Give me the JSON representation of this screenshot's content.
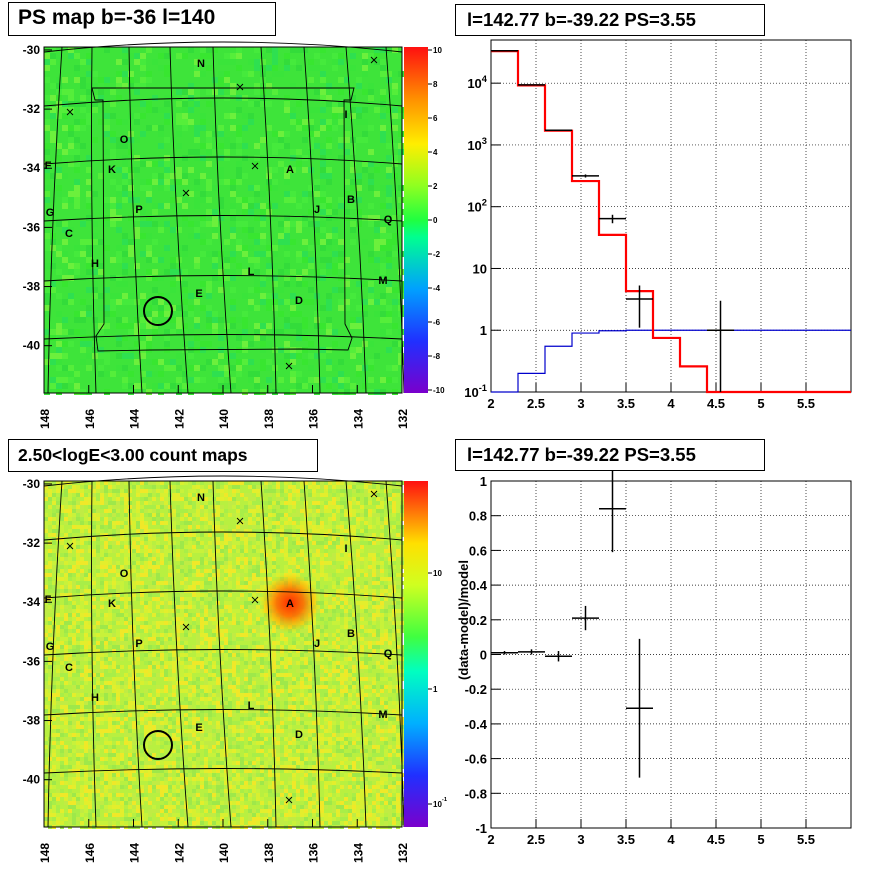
{
  "panels": {
    "map_top_title": "PS map b=-36 l=140",
    "spec_top_title": "l=142.77 b=-39.22 PS=3.55",
    "map_bottom_title": "2.50<logE<3.00 count maps",
    "spec_bottom_title": "l=142.77 b=-39.22 PS=3.55"
  },
  "source_labels": [
    "N",
    "I",
    "O",
    "K",
    "F",
    "A",
    "B",
    "J",
    "Q",
    "G",
    "C",
    "P",
    "H",
    "L",
    "M",
    "E",
    "D"
  ],
  "colors": {
    "data": "#000000",
    "model": "#ff0000",
    "background_model": "#0000cc"
  },
  "chart_data": [
    {
      "type": "heatmap",
      "title": "PS map b=-36 l=140",
      "x_ticks": [
        "148",
        "146",
        "144",
        "142",
        "140",
        "138",
        "136",
        "134",
        "132"
      ],
      "y_ticks": [
        "-30",
        "-32",
        "-34",
        "-36",
        "-38",
        "-40"
      ],
      "xlim": [
        148,
        132
      ],
      "ylim": [
        -41.6,
        -29.9
      ],
      "colorbar_ticks": [
        "10",
        "8",
        "6",
        "4",
        "2",
        "0",
        "-2",
        "-4",
        "-6",
        "-8",
        "-10"
      ],
      "colorbar_range": [
        -10,
        10
      ],
      "marked_position": {
        "l": 142.77,
        "b": -39.22
      }
    },
    {
      "type": "line",
      "title": "l=142.77 b=-39.22 PS=3.55",
      "xlabel": "",
      "ylabel": "",
      "xlim": [
        2,
        6
      ],
      "ylim": [
        0.1,
        50000
      ],
      "yscale": "log",
      "x_ticks": [
        "2",
        "2.5",
        "3",
        "3.5",
        "4",
        "4.5",
        "5",
        "5.5"
      ],
      "y_ticks": [
        "10^-1",
        "1",
        "10",
        "10^2",
        "10^3",
        "10^4"
      ],
      "grid": true,
      "model_total": {
        "edges": [
          2,
          2.3,
          2.6,
          2.9,
          3.2,
          3.5,
          3.8,
          4.1,
          4.4,
          4.7,
          5.0,
          6.0
        ],
        "values": [
          33000,
          9200,
          1700,
          260,
          35,
          4.3,
          0.75,
          0.26,
          0.1,
          0.1,
          0.1
        ]
      },
      "background_model": {
        "edges": [
          2,
          2.3,
          2.6,
          2.9,
          3.2,
          3.5,
          6.0
        ],
        "values": [
          0.05,
          0.2,
          0.55,
          0.9,
          0.98,
          1.0
        ]
      },
      "data_points": [
        {
          "x": 2.15,
          "xerr": 0.15,
          "y": 33500,
          "yerr": 200
        },
        {
          "x": 2.45,
          "xerr": 0.15,
          "y": 9400,
          "yerr": 100
        },
        {
          "x": 2.75,
          "xerr": 0.15,
          "y": 1730,
          "yerr": 40
        },
        {
          "x": 3.05,
          "xerr": 0.15,
          "y": 315,
          "yerr": 18
        },
        {
          "x": 3.35,
          "xerr": 0.15,
          "y": 64,
          "yerr": 10
        },
        {
          "x": 3.65,
          "xerr": 0.15,
          "y": 3.2,
          "ylo": 1.1,
          "yhi": 5.3
        },
        {
          "x": 4.55,
          "xerr": 0.15,
          "y": 1.0,
          "ylo": 0.1,
          "yhi": 3.0
        }
      ]
    },
    {
      "type": "heatmap",
      "title": "2.50<logE<3.00 count maps",
      "x_ticks": [
        "148",
        "146",
        "144",
        "142",
        "140",
        "138",
        "136",
        "134",
        "132"
      ],
      "y_ticks": [
        "-30",
        "-32",
        "-34",
        "-36",
        "-38",
        "-40"
      ],
      "xlim": [
        148,
        132
      ],
      "ylim": [
        -41.6,
        -29.9
      ],
      "colorbar_ticks": [
        "10",
        "1",
        "10^-1"
      ],
      "colorbar_scale": "log",
      "hotspot": {
        "label": "A",
        "l": 137.0,
        "b": -34.0
      },
      "marked_position": {
        "l": 142.77,
        "b": -39.22
      }
    },
    {
      "type": "scatter",
      "title": "l=142.77 b=-39.22 PS=3.55",
      "xlabel": "",
      "ylabel": "(data-model)/model",
      "xlim": [
        2,
        6
      ],
      "ylim": [
        -1,
        1
      ],
      "x_ticks": [
        "2",
        "2.5",
        "3",
        "3.5",
        "4",
        "4.5",
        "5",
        "5.5"
      ],
      "y_ticks": [
        "-1",
        "-0.8",
        "-0.6",
        "-0.4",
        "-0.2",
        "0",
        "0.2",
        "0.4",
        "0.6",
        "0.8",
        "1"
      ],
      "grid": true,
      "points": [
        {
          "x": 2.15,
          "xerr": 0.15,
          "y": 0.01,
          "yerr": 0.01
        },
        {
          "x": 2.45,
          "xerr": 0.15,
          "y": 0.015,
          "yerr": 0.015
        },
        {
          "x": 2.75,
          "xerr": 0.15,
          "y": -0.01,
          "yerr": 0.03
        },
        {
          "x": 3.05,
          "xerr": 0.15,
          "y": 0.21,
          "yerr": 0.07
        },
        {
          "x": 3.35,
          "xerr": 0.15,
          "y": 0.84,
          "yerr": 0.25
        },
        {
          "x": 3.65,
          "xerr": 0.15,
          "y": -0.31,
          "yerr": 0.4
        }
      ]
    }
  ]
}
